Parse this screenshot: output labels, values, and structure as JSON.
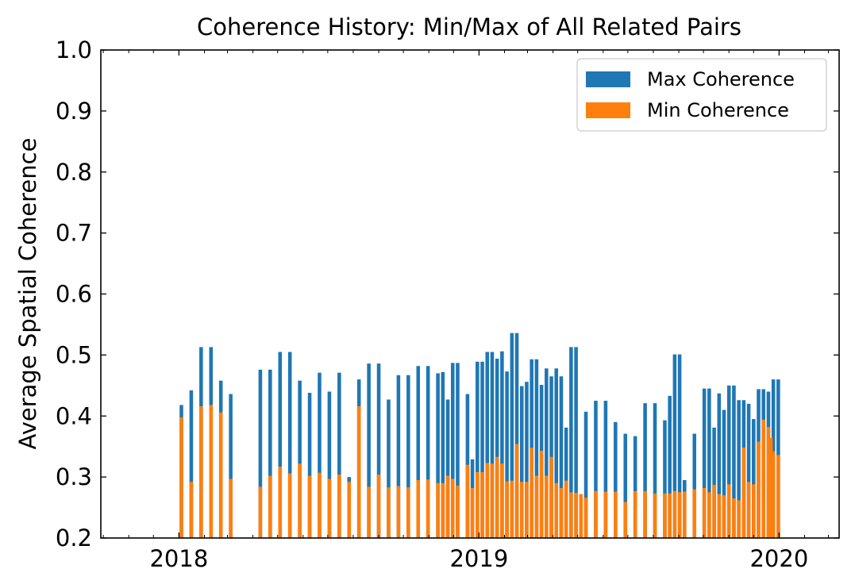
{
  "chart_data": {
    "type": "bar",
    "title": "Coherence History: Min/Max of All Related Pairs",
    "xlabel": "",
    "ylabel": "Average Spatial Coherence",
    "x_axis_type": "date",
    "xlim": [
      "2017-09-28",
      "2020-03-14"
    ],
    "ylim": [
      0.2,
      1.0
    ],
    "x_ticks": [
      "2018",
      "2019",
      "2020"
    ],
    "y_ticks": [
      "0.2",
      "0.3",
      "0.4",
      "0.5",
      "0.6",
      "0.7",
      "0.8",
      "0.9",
      "1.0"
    ],
    "legend_position": "top-right",
    "grid": false,
    "series": [
      {
        "name": "Max Coherence",
        "color": "#1f77b4",
        "values": [
          0.418,
          0.442,
          0.513,
          0.513,
          0.458,
          0.436,
          0.476,
          0.476,
          0.505,
          0.505,
          0.458,
          0.438,
          0.471,
          0.44,
          0.471,
          0.3,
          0.46,
          0.486,
          0.486,
          0.427,
          0.467,
          0.467,
          0.482,
          0.482,
          0.47,
          0.472,
          0.427,
          0.487,
          0.487,
          0.436,
          0.329,
          0.489,
          0.489,
          0.505,
          0.505,
          0.494,
          0.506,
          0.473,
          0.536,
          0.536,
          0.449,
          0.456,
          0.493,
          0.493,
          0.451,
          0.478,
          0.465,
          0.478,
          0.465,
          0.381,
          0.513,
          0.513,
          0.407,
          0.425,
          0.425,
          0.39,
          0.371,
          0.367,
          0.421,
          0.421,
          0.393,
          0.433,
          0.501,
          0.501,
          0.295,
          0.371,
          0.445,
          0.445,
          0.381,
          0.437,
          0.41,
          0.45,
          0.45,
          0.426,
          0.426,
          0.42,
          0.395,
          0.444,
          0.444,
          0.44,
          0.46,
          0.46
        ]
      },
      {
        "name": "Min Coherence",
        "color": "#ff7f0e",
        "values": [
          0.398,
          0.292,
          0.416,
          0.418,
          0.406,
          0.297,
          0.284,
          0.302,
          0.317,
          0.306,
          0.322,
          0.302,
          0.307,
          0.297,
          0.304,
          0.292,
          0.416,
          0.284,
          0.304,
          0.283,
          0.285,
          0.283,
          0.295,
          0.296,
          0.29,
          0.29,
          0.302,
          0.297,
          0.286,
          0.32,
          0.282,
          0.308,
          0.308,
          0.323,
          0.322,
          0.333,
          0.322,
          0.293,
          0.294,
          0.354,
          0.292,
          0.292,
          0.348,
          0.302,
          0.343,
          0.302,
          0.333,
          0.29,
          0.282,
          0.294,
          0.275,
          0.274,
          0.272,
          0.266,
          0.277,
          0.276,
          0.276,
          0.259,
          0.277,
          0.277,
          0.273,
          0.273,
          0.273,
          0.277,
          0.275,
          0.276,
          0.28,
          0.282,
          0.275,
          0.287,
          0.272,
          0.27,
          0.288,
          0.265,
          0.262,
          0.348,
          0.292,
          0.288,
          0.358,
          0.394,
          0.382,
          0.364,
          0.342,
          0.336
        ]
      }
    ],
    "dates_max": [
      "2018-01-04",
      "2018-01-16",
      "2018-01-28",
      "2018-02-09",
      "2018-02-21",
      "2018-03-05",
      "2018-04-10",
      "2018-04-22",
      "2018-05-04",
      "2018-05-16",
      "2018-05-28",
      "2018-06-09",
      "2018-06-21",
      "2018-07-03",
      "2018-07-15",
      "2018-07-27",
      "2018-08-08",
      "2018-08-20",
      "2018-09-01",
      "2018-09-13",
      "2018-09-25",
      "2018-10-07",
      "2018-10-19",
      "2018-10-31",
      "2018-11-12",
      "2018-11-18",
      "2018-11-24",
      "2018-11-30",
      "2018-12-06",
      "2018-12-18",
      "2018-12-24",
      "2018-12-30",
      "2019-01-05",
      "2019-01-11",
      "2019-01-17",
      "2019-01-23",
      "2019-01-29",
      "2019-02-04",
      "2019-02-10",
      "2019-02-16",
      "2019-02-22",
      "2019-02-28",
      "2019-03-06",
      "2019-03-12",
      "2019-03-18",
      "2019-03-24",
      "2019-03-30",
      "2019-04-05",
      "2019-04-11",
      "2019-04-17",
      "2019-04-23",
      "2019-04-29",
      "2019-05-11",
      "2019-05-23",
      "2019-06-04",
      "2019-06-16",
      "2019-06-28",
      "2019-07-10",
      "2019-07-22",
      "2019-08-03",
      "2019-08-15",
      "2019-08-21",
      "2019-08-27",
      "2019-09-02",
      "2019-09-08",
      "2019-09-20",
      "2019-10-02",
      "2019-10-08",
      "2019-10-14",
      "2019-10-20",
      "2019-10-26",
      "2019-11-01",
      "2019-11-07",
      "2019-11-13",
      "2019-11-19",
      "2019-11-25",
      "2019-12-01",
      "2019-12-07",
      "2019-12-13",
      "2019-12-19",
      "2019-12-25",
      "2019-12-31"
    ],
    "dates_min": [
      "2018-01-04",
      "2018-01-16",
      "2018-01-28",
      "2018-02-09",
      "2018-02-21",
      "2018-03-05",
      "2018-04-10",
      "2018-04-22",
      "2018-05-04",
      "2018-05-16",
      "2018-05-28",
      "2018-06-09",
      "2018-06-21",
      "2018-07-03",
      "2018-07-15",
      "2018-07-27",
      "2018-08-08",
      "2018-08-20",
      "2018-09-01",
      "2018-09-13",
      "2018-09-25",
      "2018-10-07",
      "2018-10-19",
      "2018-10-31",
      "2018-11-12",
      "2018-11-18",
      "2018-11-24",
      "2018-11-30",
      "2018-12-06",
      "2018-12-18",
      "2018-12-24",
      "2018-12-30",
      "2019-01-05",
      "2019-01-11",
      "2019-01-17",
      "2019-01-23",
      "2019-01-29",
      "2019-02-04",
      "2019-02-10",
      "2019-02-16",
      "2019-02-22",
      "2019-02-28",
      "2019-03-06",
      "2019-03-12",
      "2019-03-18",
      "2019-03-24",
      "2019-03-30",
      "2019-04-05",
      "2019-04-11",
      "2019-04-17",
      "2019-04-23",
      "2019-04-29",
      "2019-05-05",
      "2019-05-11",
      "2019-05-23",
      "2019-06-04",
      "2019-06-16",
      "2019-06-28",
      "2019-07-10",
      "2019-07-22",
      "2019-08-03",
      "2019-08-15",
      "2019-08-21",
      "2019-08-27",
      "2019-09-02",
      "2019-09-08",
      "2019-09-20",
      "2019-10-02",
      "2019-10-08",
      "2019-10-14",
      "2019-10-20",
      "2019-10-26",
      "2019-11-01",
      "2019-11-07",
      "2019-11-13",
      "2019-11-19",
      "2019-11-25",
      "2019-12-01",
      "2019-12-07",
      "2019-12-13",
      "2019-12-19",
      "2019-12-22",
      "2019-12-25",
      "2019-12-31"
    ]
  }
}
